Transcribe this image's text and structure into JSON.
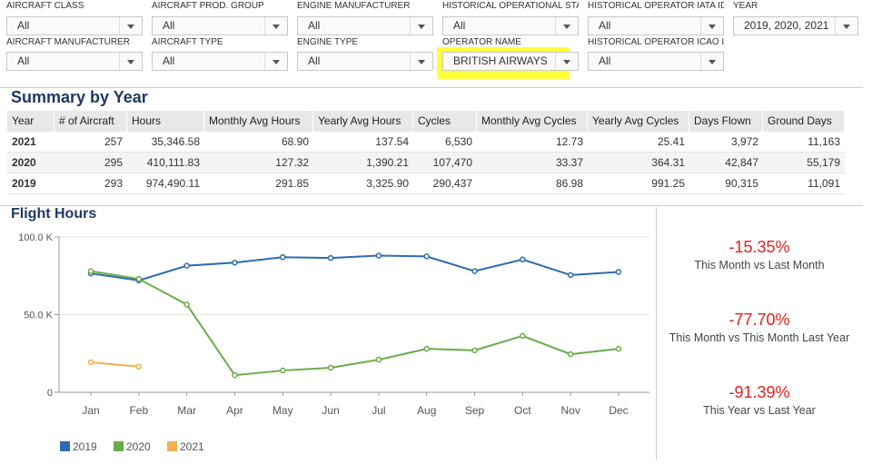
{
  "filters": [
    {
      "label": "AIRCRAFT CLASS",
      "value": "All"
    },
    {
      "label": "AIRCRAFT PROD. GROUP",
      "value": "All"
    },
    {
      "label": "ENGINE MANUFACTURER",
      "value": "All"
    },
    {
      "label": "HISTORICAL OPERATIONAL STA...",
      "value": "All"
    },
    {
      "label": "HISTORICAL OPERATOR IATA ID",
      "value": "All"
    },
    {
      "label": "YEAR",
      "value": "2019, 2020, 2021"
    },
    {
      "label": "AIRCRAFT MANUFACTURER",
      "value": "All"
    },
    {
      "label": "AIRCRAFT TYPE",
      "value": "All"
    },
    {
      "label": "ENGINE TYPE",
      "value": "All"
    },
    {
      "label": "OPERATOR NAME",
      "value": "BRITISH AIRWAYS"
    },
    {
      "label": "HISTORICAL OPERATOR ICAO ID",
      "value": "All"
    }
  ],
  "summary": {
    "title": "Summary by Year",
    "header": [
      "Year",
      "# of Aircraft",
      "Hours",
      "Monthly Avg Hours",
      "Yearly Avg Hours",
      "Cycles",
      "Monthly Avg Cycles",
      "Yearly Avg Cycles",
      "Days Flown",
      "Ground Days"
    ],
    "rows": [
      [
        "2021",
        "257",
        "35,346.58",
        "68.90",
        "137.54",
        "6,530",
        "12.73",
        "25.41",
        "3,972",
        "11,163"
      ],
      [
        "2020",
        "295",
        "410,111.83",
        "127.32",
        "1,390.21",
        "107,470",
        "33.37",
        "364.31",
        "42,847",
        "55,179"
      ],
      [
        "2019",
        "293",
        "974,490.11",
        "291.85",
        "3,325.90",
        "290,437",
        "86.98",
        "991.25",
        "90,315",
        "11,091"
      ]
    ]
  },
  "chart_data": {
    "type": "line",
    "title": "Flight Hours",
    "categories": [
      "Jan",
      "Feb",
      "Mar",
      "Apr",
      "May",
      "Jun",
      "Jul",
      "Aug",
      "Sep",
      "Oct",
      "Nov",
      "Dec"
    ],
    "series": [
      {
        "name": "2019",
        "color": "#2e6bb0",
        "values": [
          76500,
          72000,
          81500,
          83500,
          87000,
          86500,
          88000,
          87500,
          78000,
          85500,
          75500,
          77500
        ]
      },
      {
        "name": "2020",
        "color": "#6aab4a",
        "values": [
          78000,
          73000,
          56500,
          11000,
          14000,
          15800,
          21000,
          28000,
          27000,
          36300,
          24500,
          28000
        ]
      },
      {
        "name": "2021",
        "color": "#f0b050",
        "values": [
          19300,
          16500,
          null,
          null,
          null,
          null,
          null,
          null,
          null,
          null,
          null,
          null
        ]
      }
    ],
    "ylim": [
      0,
      100000
    ],
    "yticks": [
      0,
      {
        "value": 50000,
        "label": "50.0 K"
      },
      {
        "value": 100000,
        "label": "100.0 K"
      }
    ],
    "grid": true,
    "legend": "bottom-left"
  },
  "kpis": [
    {
      "value": "-15.35%",
      "caption": "This Month vs Last Month"
    },
    {
      "value": "-77.70%",
      "caption": "This Month vs This Month Last Year"
    },
    {
      "value": "-91.39%",
      "caption": "This Year vs Last Year"
    }
  ]
}
